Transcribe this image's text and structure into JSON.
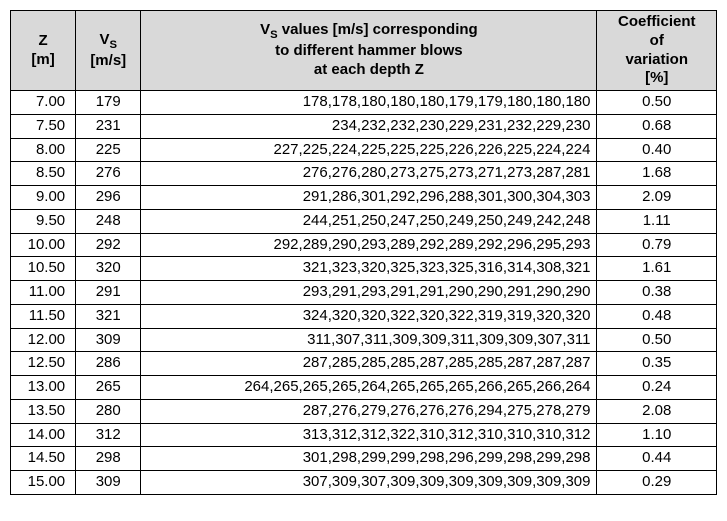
{
  "headers": {
    "z": "Z\n[m]",
    "vs_prefix": "V",
    "vs_sub": "S",
    "vs_suffix": "\n[m/s]",
    "values_prefix": "V",
    "values_sub": "S",
    "values_line1_rest": " values [m/s] corresponding",
    "values_line2": "to different hammer blows",
    "values_line3": "at each depth Z",
    "cv_line1": "Coefficient",
    "cv_line2": "of",
    "cv_line3": "variation",
    "cv_line4": "[%]"
  },
  "rows": [
    {
      "z": "7.00",
      "vs": "179",
      "values": "178,178,180,180,180,179,179,180,180,180",
      "cv": "0.50"
    },
    {
      "z": "7.50",
      "vs": "231",
      "values": "234,232,232,230,229,231,232,229,230",
      "cv": "0.68"
    },
    {
      "z": "8.00",
      "vs": "225",
      "values": "227,225,224,225,225,225,226,226,225,224,224",
      "cv": "0.40"
    },
    {
      "z": "8.50",
      "vs": "276",
      "values": "276,276,280,273,275,273,271,273,287,281",
      "cv": "1.68"
    },
    {
      "z": "9.00",
      "vs": "296",
      "values": "291,286,301,292,296,288,301,300,304,303",
      "cv": "2.09"
    },
    {
      "z": "9.50",
      "vs": "248",
      "values": "244,251,250,247,250,249,250,249,242,248",
      "cv": "1.11"
    },
    {
      "z": "10.00",
      "vs": "292",
      "values": "292,289,290,293,289,292,289,292,296,295,293",
      "cv": "0.79"
    },
    {
      "z": "10.50",
      "vs": "320",
      "values": "321,323,320,325,323,325,316,314,308,321",
      "cv": "1.61"
    },
    {
      "z": "11.00",
      "vs": "291",
      "values": "293,291,293,291,291,290,290,291,290,290",
      "cv": "0.38"
    },
    {
      "z": "11.50",
      "vs": "321",
      "values": "324,320,320,322,320,322,319,319,320,320",
      "cv": "0.48"
    },
    {
      "z": "12.00",
      "vs": "309",
      "values": "311,307,311,309,309,311,309,309,307,311",
      "cv": "0.50"
    },
    {
      "z": "12.50",
      "vs": "286",
      "values": "287,285,285,285,287,285,285,287,287,287",
      "cv": "0.35"
    },
    {
      "z": "13.00",
      "vs": "265",
      "values": "264,265,265,265,264,265,265,265,266,265,266,264",
      "cv": "0.24"
    },
    {
      "z": "13.50",
      "vs": "280",
      "values": "287,276,279,276,276,276,294,275,278,279",
      "cv": "2.08"
    },
    {
      "z": "14.00",
      "vs": "312",
      "values": "313,312,312,322,310,312,310,310,310,312",
      "cv": "1.10"
    },
    {
      "z": "14.50",
      "vs": "298",
      "values": "301,298,299,299,298,296,299,298,299,298",
      "cv": "0.44"
    },
    {
      "z": "15.00",
      "vs": "309",
      "values": "307,309,307,309,309,309,309,309,309,309",
      "cv": "0.29"
    }
  ]
}
